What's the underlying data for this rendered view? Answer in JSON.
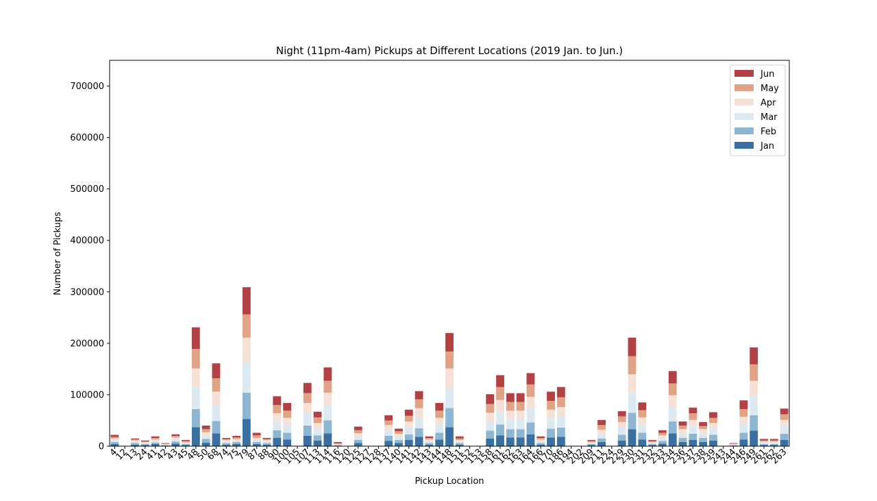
{
  "chart_data": {
    "type": "bar",
    "stacked": true,
    "title": "Night (11pm-4am) Pickups at Different Locations (2019 Jan. to Jun.)",
    "xlabel": "Pickup Location",
    "ylabel": "Number of Pickups",
    "ylim": [
      0,
      750000
    ],
    "yticks": [
      0,
      100000,
      200000,
      300000,
      400000,
      500000,
      600000,
      700000
    ],
    "legend_position": "top-right",
    "grid": false,
    "categories": [
      "4",
      "12",
      "13",
      "24",
      "41",
      "42",
      "43",
      "45",
      "48",
      "50",
      "68",
      "74",
      "75",
      "79",
      "87",
      "88",
      "90",
      "100",
      "105",
      "107",
      "113",
      "114",
      "116",
      "120",
      "125",
      "127",
      "128",
      "137",
      "140",
      "141",
      "142",
      "143",
      "144",
      "148",
      "151",
      "152",
      "153",
      "158",
      "161",
      "162",
      "163",
      "164",
      "166",
      "170",
      "186",
      "194",
      "202",
      "209",
      "211",
      "224",
      "229",
      "230",
      "231",
      "232",
      "233",
      "234",
      "236",
      "237",
      "238",
      "239",
      "243",
      "244",
      "246",
      "249",
      "261",
      "262",
      "263"
    ],
    "series": [
      {
        "name": "Jan",
        "color": "#3a6fa1",
        "values": [
          4000,
          0,
          3000,
          2000,
          4000,
          1000,
          5000,
          2000,
          37000,
          7000,
          25000,
          3000,
          4000,
          53000,
          4000,
          3000,
          16000,
          13000,
          0,
          20000,
          11000,
          25000,
          1000,
          0,
          6000,
          0,
          0,
          10000,
          6000,
          12000,
          18000,
          3000,
          13000,
          37000,
          3000,
          0,
          0,
          15000,
          21000,
          17000,
          17000,
          23000,
          3000,
          17000,
          18000,
          0,
          0,
          2000,
          8000,
          0,
          11000,
          33000,
          13000,
          2000,
          5000,
          25000,
          8000,
          12000,
          8000,
          11000,
          0,
          1000,
          13000,
          30000,
          2000,
          2000,
          12000
        ]
      },
      {
        "name": "Feb",
        "color": "#8cb6d1",
        "values": [
          4000,
          0,
          3000,
          2000,
          3000,
          1000,
          4000,
          2000,
          35000,
          7000,
          24000,
          3000,
          4000,
          51000,
          4000,
          3000,
          15000,
          13000,
          0,
          20000,
          10000,
          25000,
          1000,
          0,
          6000,
          0,
          0,
          10000,
          6000,
          11000,
          17000,
          3000,
          13000,
          37000,
          3000,
          0,
          0,
          15000,
          21000,
          16000,
          16000,
          23000,
          3000,
          17000,
          18000,
          0,
          0,
          2000,
          7000,
          0,
          11000,
          32000,
          13000,
          2000,
          5000,
          23000,
          8000,
          12000,
          8000,
          11000,
          0,
          1000,
          13000,
          30000,
          2000,
          2000,
          12000
        ]
      },
      {
        "name": "Mar",
        "color": "#dde9f0",
        "values": [
          4000,
          0,
          3000,
          2000,
          3000,
          1000,
          4000,
          2000,
          44000,
          7000,
          31000,
          3000,
          3000,
          59000,
          4000,
          3000,
          18000,
          16000,
          0,
          25000,
          13000,
          31000,
          1000,
          0,
          7000,
          0,
          0,
          12000,
          7000,
          14000,
          21000,
          4000,
          16000,
          43000,
          3000,
          0,
          0,
          18000,
          25000,
          19000,
          19000,
          28000,
          4000,
          21000,
          22000,
          0,
          0,
          2000,
          9000,
          0,
          14000,
          40000,
          16000,
          2000,
          6000,
          28000,
          9000,
          15000,
          9000,
          13000,
          0,
          1000,
          16000,
          37000,
          3000,
          3000,
          15000
        ]
      },
      {
        "name": "Apr",
        "color": "#f6e1d6",
        "values": [
          3000,
          0,
          2000,
          2000,
          3000,
          1000,
          4000,
          2000,
          35000,
          6000,
          26000,
          3000,
          3000,
          48000,
          4000,
          3000,
          15000,
          13000,
          0,
          19000,
          11000,
          23000,
          1000,
          0,
          6000,
          0,
          0,
          9000,
          5000,
          11000,
          18000,
          3000,
          13000,
          34000,
          3000,
          0,
          0,
          17000,
          23000,
          17000,
          17000,
          22000,
          3000,
          16000,
          18000,
          0,
          0,
          2000,
          8000,
          0,
          11000,
          35000,
          14000,
          2000,
          5000,
          23000,
          8000,
          12000,
          8000,
          10000,
          0,
          1000,
          15000,
          30000,
          2000,
          2000,
          12000
        ]
      },
      {
        "name": "May",
        "color": "#e0a386",
        "values": [
          3000,
          0,
          2000,
          1000,
          3000,
          1000,
          3000,
          2000,
          38000,
          6000,
          26000,
          2000,
          3000,
          45000,
          5000,
          2000,
          16000,
          14000,
          0,
          19000,
          11000,
          23000,
          2000,
          0,
          6000,
          0,
          0,
          9000,
          5000,
          11000,
          17000,
          3000,
          14000,
          33000,
          3000,
          0,
          0,
          17000,
          25000,
          17000,
          17000,
          24000,
          3000,
          17000,
          19000,
          0,
          0,
          2000,
          9000,
          0,
          11000,
          35000,
          14000,
          2000,
          5000,
          23000,
          7000,
          13000,
          6000,
          10000,
          0,
          1000,
          15000,
          32000,
          2000,
          2000,
          11000
        ]
      },
      {
        "name": "Jun",
        "color": "#b24145",
        "values": [
          4000,
          0,
          2000,
          2000,
          3000,
          1000,
          3000,
          2000,
          42000,
          7000,
          29000,
          2000,
          3000,
          53000,
          5000,
          2000,
          17000,
          15000,
          0,
          20000,
          11000,
          26000,
          2000,
          0,
          7000,
          0,
          0,
          10000,
          5000,
          12000,
          16000,
          3000,
          15000,
          36000,
          4000,
          0,
          0,
          19000,
          23000,
          17000,
          17000,
          22000,
          3000,
          18000,
          20000,
          0,
          0,
          2000,
          10000,
          0,
          10000,
          36000,
          15000,
          2000,
          5000,
          24000,
          8000,
          11000,
          8000,
          11000,
          0,
          1000,
          17000,
          33000,
          3000,
          3000,
          11000
        ]
      }
    ]
  }
}
